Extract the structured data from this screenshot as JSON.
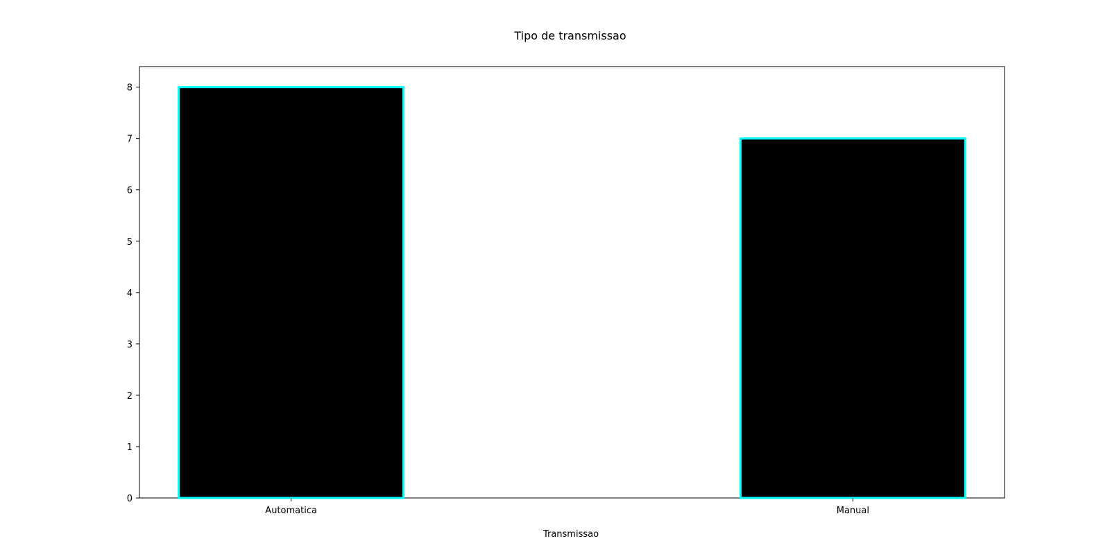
{
  "chart_data": {
    "type": "bar",
    "title": "Tipo de transmissao",
    "xlabel": "Transmissao",
    "ylabel": "",
    "categories": [
      "Automatica",
      "Manual"
    ],
    "values": [
      8,
      7
    ],
    "ylim": [
      0,
      8.4
    ],
    "yticks": [
      0,
      1,
      2,
      3,
      4,
      5,
      6,
      7,
      8
    ],
    "grid": false,
    "bar_fill_color": "#000000",
    "bar_edge_color": "#00ffff"
  }
}
